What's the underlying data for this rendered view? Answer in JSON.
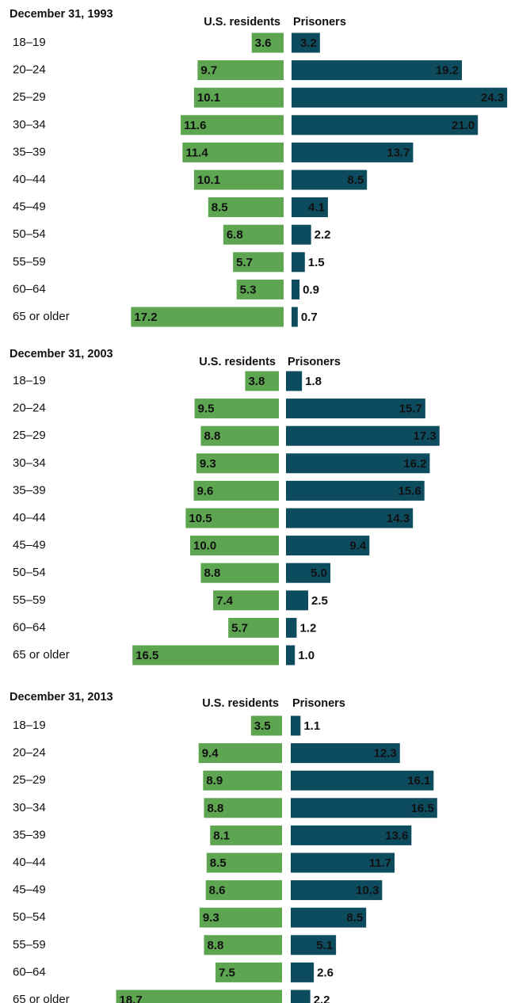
{
  "chart_data": [
    {
      "type": "bar",
      "title": "December 31, 1993",
      "categories": [
        "18–19",
        "20–24",
        "25–29",
        "30–34",
        "35–39",
        "40–44",
        "45–49",
        "50–54",
        "55–59",
        "60–64",
        "65 or older"
      ],
      "series": [
        {
          "name": "U.S. residents",
          "color": "#5ea552",
          "values": [
            3.6,
            9.7,
            10.1,
            11.6,
            11.4,
            10.1,
            8.5,
            6.8,
            5.7,
            5.3,
            17.2
          ]
        },
        {
          "name": "Prisoners",
          "color": "#0d4b5e",
          "values": [
            3.2,
            19.2,
            24.3,
            21.0,
            13.7,
            8.5,
            4.1,
            2.2,
            1.5,
            0.9,
            0.7
          ],
          "value_labels": [
            "3.2",
            "19.2",
            "24.3",
            "21.0",
            "13.7",
            "8.5",
            "4.1",
            "2.2",
            "1.5",
            "0.9",
            "0.7"
          ]
        }
      ]
    },
    {
      "type": "bar",
      "title": "December 31, 2003",
      "categories": [
        "18–19",
        "20–24",
        "25–29",
        "30–34",
        "35–39",
        "40–44",
        "45–49",
        "50–54",
        "55–59",
        "60–64",
        "65 or older"
      ],
      "series": [
        {
          "name": "U.S. residents",
          "color": "#5ea552",
          "values": [
            3.8,
            9.5,
            8.8,
            9.3,
            9.6,
            10.5,
            10.0,
            8.8,
            7.4,
            5.7,
            16.5
          ],
          "value_labels": [
            "3.8",
            "9.5",
            "8.8",
            "9.3",
            "9.6",
            "10.5",
            "10.0",
            "8.8",
            "7.4",
            "5.7",
            "16.5"
          ]
        },
        {
          "name": "Prisoners",
          "color": "#0d4b5e",
          "values": [
            1.8,
            15.7,
            17.3,
            16.2,
            15.6,
            14.3,
            9.4,
            5.0,
            2.5,
            1.2,
            1.0
          ],
          "value_labels": [
            "1.8",
            "15.7",
            "17.3",
            "16.2",
            "15.6",
            "14.3",
            "9.4",
            "5.0",
            "2.5",
            "1.2",
            "1.0"
          ]
        }
      ]
    },
    {
      "type": "bar",
      "title": "December 31, 2013",
      "categories": [
        "18–19",
        "20–24",
        "25–29",
        "30–34",
        "35–39",
        "40–44",
        "45–49",
        "50–54",
        "55–59",
        "60–64",
        "65 or older"
      ],
      "series": [
        {
          "name": "U.S. residents",
          "color": "#5ea552",
          "values": [
            3.5,
            9.4,
            8.9,
            8.8,
            8.1,
            8.5,
            8.6,
            9.3,
            8.8,
            7.5,
            18.7
          ]
        },
        {
          "name": "Prisoners",
          "color": "#0d4b5e",
          "values": [
            1.1,
            12.3,
            16.1,
            16.5,
            13.6,
            11.7,
            10.3,
            8.5,
            5.1,
            2.6,
            2.2
          ]
        }
      ]
    }
  ]
}
